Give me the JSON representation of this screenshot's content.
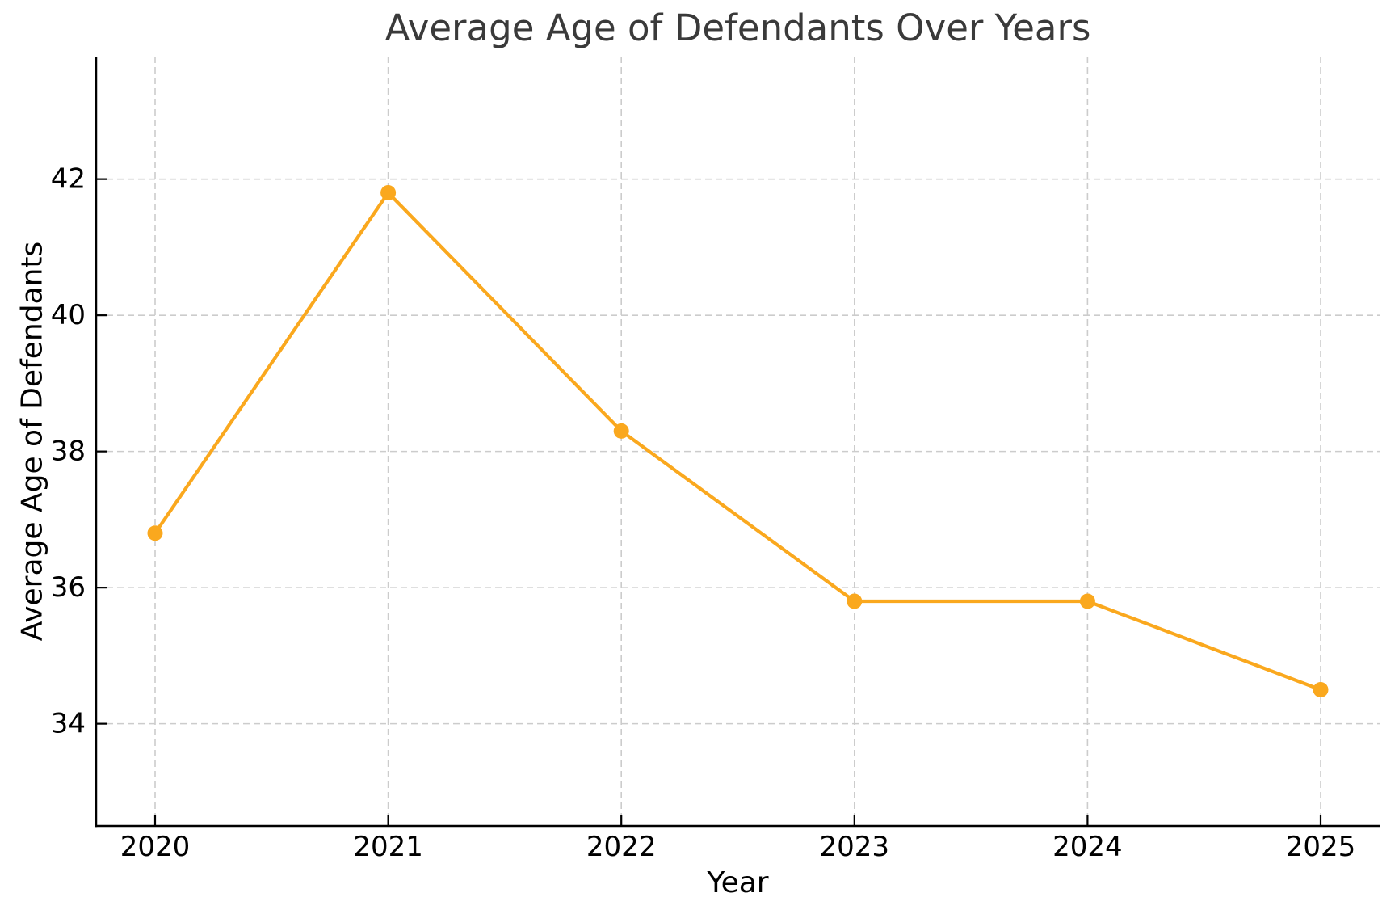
{
  "chart_data": {
    "type": "line",
    "title": "Average Age of Defendants Over Years",
    "xlabel": "Year",
    "ylabel": "Average Age of Defendants",
    "x": [
      2020,
      2021,
      2022,
      2023,
      2024,
      2025
    ],
    "series": [
      {
        "name": "Average Age of Defendants",
        "values": [
          36.8,
          41.8,
          38.3,
          35.8,
          35.8,
          34.5
        ]
      }
    ],
    "yticks": [
      34,
      36,
      38,
      40,
      42
    ],
    "ylim": [
      32.5,
      43.8
    ],
    "grid": true,
    "legend": "none",
    "colors": {
      "line": "#FAA81E",
      "marker": "#FAA81E",
      "grid": "#cccccc",
      "axis": "#000000",
      "tick_label": "#000000",
      "title": "#3a3a3a",
      "background": "#ffffff"
    }
  }
}
